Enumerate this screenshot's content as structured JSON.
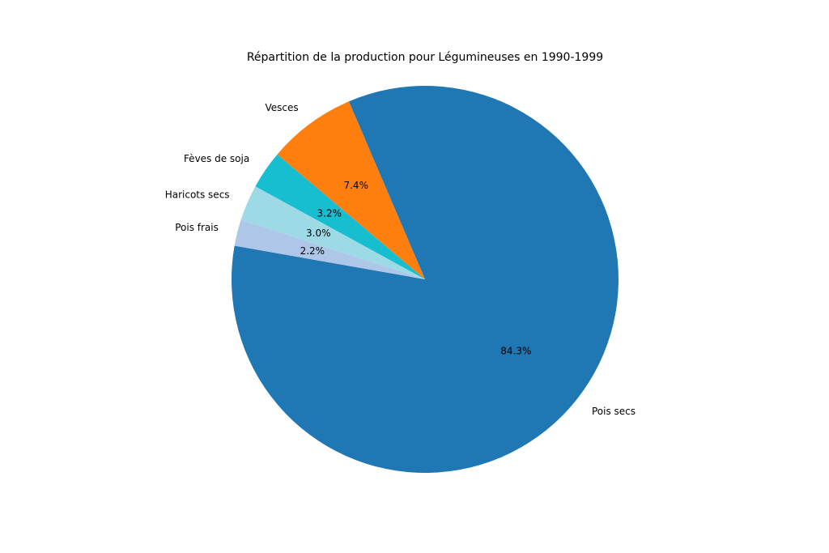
{
  "chart_data": {
    "type": "pie",
    "title": "Répartition de la production pour Légumineuses en 1990-1999",
    "start_angle_deg": 170,
    "direction": "counterclockwise",
    "slices": [
      {
        "label": "Pois secs",
        "value": 84.3,
        "pct_label": "84.3%",
        "color": "#1f77b4"
      },
      {
        "label": "Vesces",
        "value": 7.4,
        "pct_label": "7.4%",
        "color": "#ff7f0e"
      },
      {
        "label": "Fèves de soja",
        "value": 3.2,
        "pct_label": "3.2%",
        "color": "#17becf"
      },
      {
        "label": "Haricots secs",
        "value": 3.0,
        "pct_label": "3.0%",
        "color": "#9edae5"
      },
      {
        "label": "Pois frais",
        "value": 2.2,
        "pct_label": "2.2%",
        "color": "#aec7e8"
      }
    ]
  }
}
